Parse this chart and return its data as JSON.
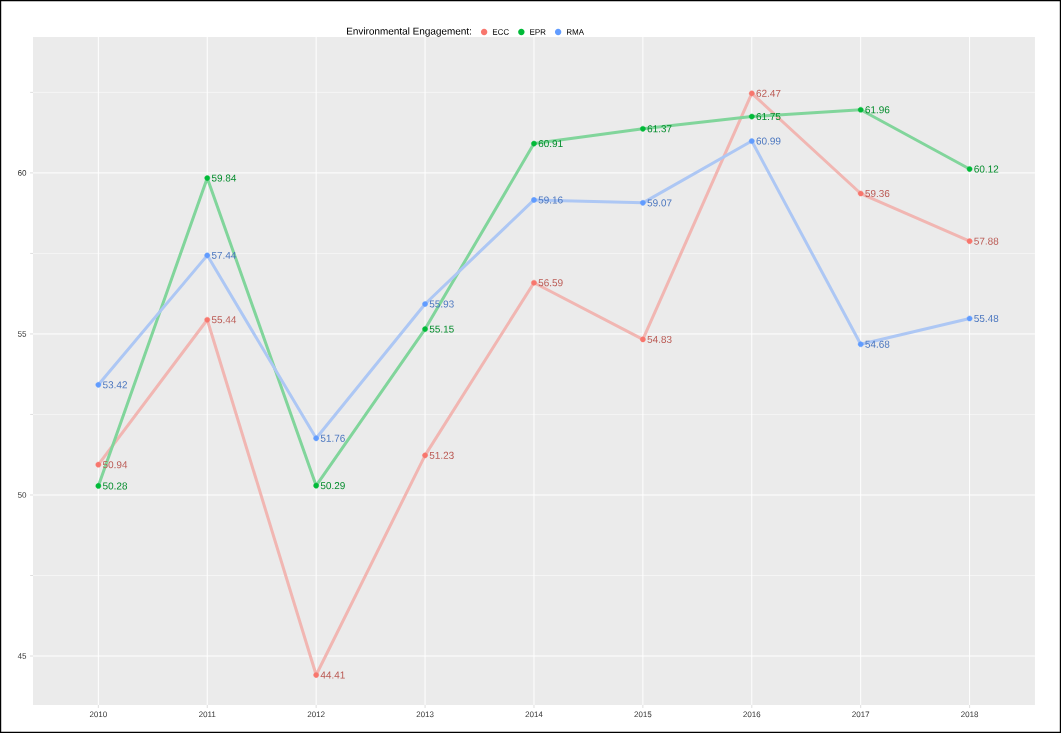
{
  "chart_data": {
    "type": "line",
    "legend_title": "Environmental Engagement:",
    "categories": [
      "2010",
      "2011",
      "2012",
      "2013",
      "2014",
      "2015",
      "2016",
      "2017",
      "2018"
    ],
    "series": [
      {
        "name": "ECC",
        "color": "#f8766d",
        "values": [
          50.94,
          55.44,
          44.41,
          51.23,
          56.59,
          54.83,
          62.47,
          59.36,
          57.88
        ]
      },
      {
        "name": "EPR",
        "color": "#00ba38",
        "values": [
          50.28,
          59.84,
          50.29,
          55.15,
          60.91,
          61.37,
          61.75,
          61.96,
          60.12
        ]
      },
      {
        "name": "RMA",
        "color": "#619cff",
        "values": [
          53.42,
          57.44,
          51.76,
          55.93,
          59.16,
          59.07,
          60.99,
          54.68,
          55.48
        ]
      }
    ],
    "ylim": [
      43.48,
      64.22
    ],
    "yticks": [
      45,
      50,
      55,
      60
    ],
    "grid": true,
    "legend": "top",
    "marker": "circle",
    "line_style": "solid",
    "data_labels": true
  }
}
